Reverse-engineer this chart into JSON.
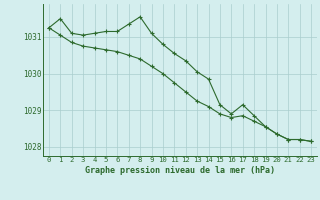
{
  "x": [
    0,
    1,
    2,
    3,
    4,
    5,
    6,
    7,
    8,
    9,
    10,
    11,
    12,
    13,
    14,
    15,
    16,
    17,
    18,
    19,
    20,
    21,
    22,
    23
  ],
  "line1": [
    1031.25,
    1031.5,
    1031.1,
    1031.05,
    1031.1,
    1031.15,
    1031.15,
    1031.35,
    1031.55,
    1031.1,
    1030.8,
    1030.55,
    1030.35,
    1030.05,
    1029.85,
    1029.15,
    1028.9,
    1029.15,
    1028.85,
    1028.55,
    1028.35,
    1028.2,
    1028.2,
    1028.15
  ],
  "line2": [
    1031.25,
    1031.05,
    1030.85,
    1030.75,
    1030.7,
    1030.65,
    1030.6,
    1030.5,
    1030.4,
    1030.2,
    1030.0,
    1029.75,
    1029.5,
    1029.25,
    1029.1,
    1028.9,
    1028.8,
    1028.85,
    1028.7,
    1028.55,
    1028.35,
    1028.2,
    1028.2,
    1028.15
  ],
  "ylim": [
    1027.75,
    1031.9
  ],
  "yticks": [
    1028,
    1029,
    1030,
    1031
  ],
  "xticks": [
    0,
    1,
    2,
    3,
    4,
    5,
    6,
    7,
    8,
    9,
    10,
    11,
    12,
    13,
    14,
    15,
    16,
    17,
    18,
    19,
    20,
    21,
    22,
    23
  ],
  "xlabel": "Graphe pression niveau de la mer (hPa)",
  "line_color": "#2d6a2d",
  "bg_color": "#d4eeee",
  "grid_color": "#aacece",
  "marker": "+",
  "linewidth": 0.8,
  "markersize": 2.5,
  "tick_fontsize": 5.2,
  "xlabel_fontsize": 6.0
}
